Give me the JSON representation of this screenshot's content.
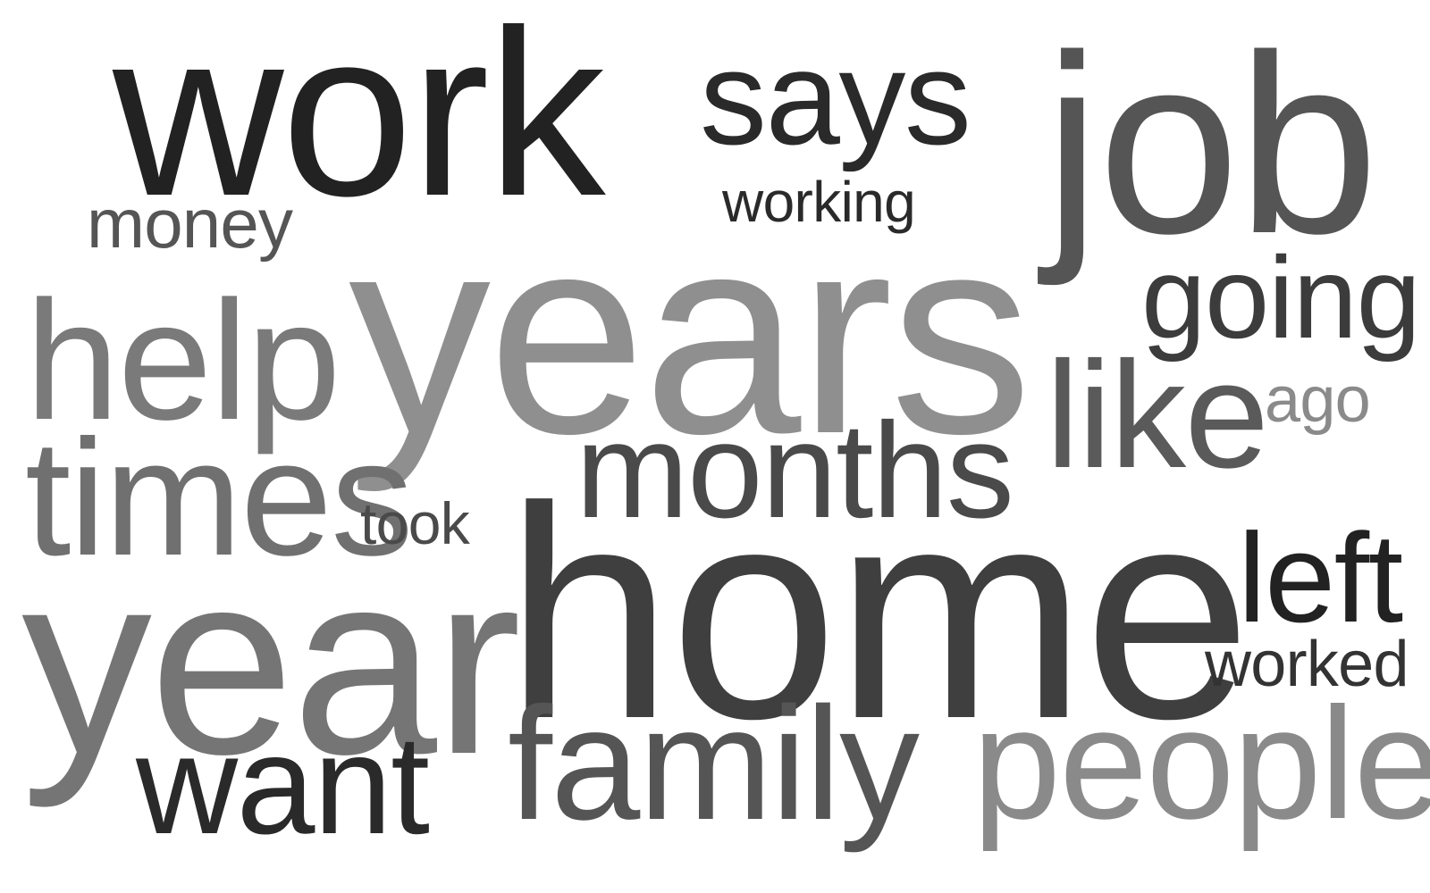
{
  "words": {
    "work": {
      "text": "work",
      "color": "#222222"
    },
    "says": {
      "text": "says",
      "color": "#2a2a2a"
    },
    "job": {
      "text": "job",
      "color": "#555555"
    },
    "working": {
      "text": "working",
      "color": "#2a2a2a"
    },
    "money": {
      "text": "money",
      "color": "#555555"
    },
    "years": {
      "text": "years",
      "color": "#8f8f8f"
    },
    "going": {
      "text": "going",
      "color": "#3c3c3c"
    },
    "help": {
      "text": "help",
      "color": "#7a7a7a"
    },
    "like": {
      "text": "like",
      "color": "#5a5a5a"
    },
    "ago": {
      "text": "ago",
      "color": "#8a8a8a"
    },
    "months": {
      "text": "months",
      "color": "#4a4a4a"
    },
    "times": {
      "text": "times",
      "color": "#707070"
    },
    "took": {
      "text": "took",
      "color": "#4a4a4a"
    },
    "home": {
      "text": "home",
      "color": "#3f3f3f"
    },
    "left": {
      "text": "left",
      "color": "#222222"
    },
    "year": {
      "text": "year",
      "color": "#757575"
    },
    "worked": {
      "text": "worked",
      "color": "#333333"
    },
    "family": {
      "text": "family",
      "color": "#555555"
    },
    "people": {
      "text": "people",
      "color": "#8a8a8a"
    },
    "want": {
      "text": "want",
      "color": "#2a2a2a"
    }
  }
}
